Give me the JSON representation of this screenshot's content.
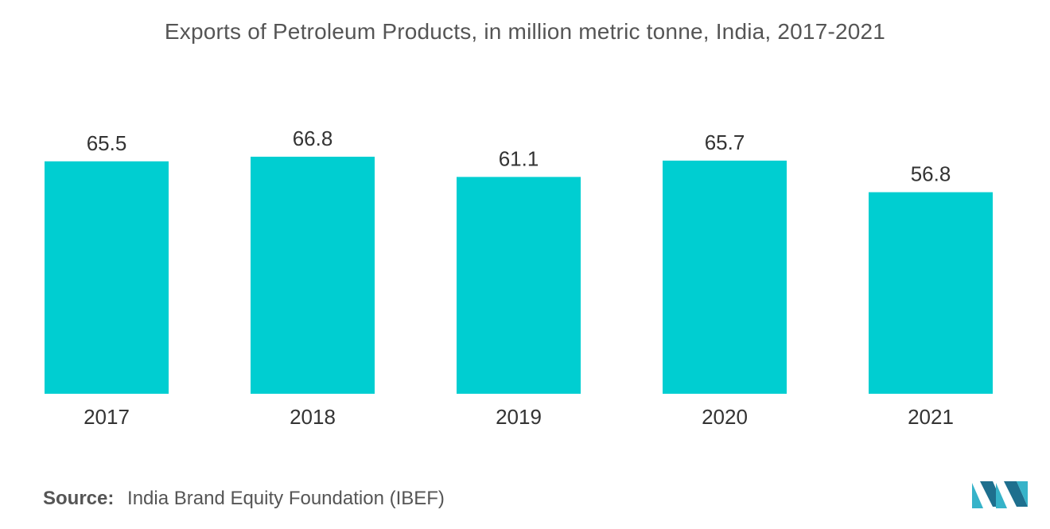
{
  "chart_data": {
    "type": "bar",
    "title": "Exports of Petroleum Products, in million metric tonne, India, 2017-2021",
    "categories": [
      "2017",
      "2018",
      "2019",
      "2020",
      "2021"
    ],
    "values": [
      65.5,
      66.8,
      61.1,
      65.7,
      56.8
    ],
    "data_labels": [
      "65.5",
      "66.8",
      "61.1",
      "65.7",
      "56.8"
    ],
    "xlabel": "",
    "ylabel": "",
    "ylim": [
      0,
      66.8
    ],
    "grid": false,
    "legend": "none",
    "bar_color": "#00CED1"
  },
  "source": {
    "label": "Source:",
    "text": "India Brand Equity Foundation (IBEF)"
  },
  "logo": {
    "icon": "mordor-intelligence-logo-icon",
    "color": "#36B3C9"
  }
}
